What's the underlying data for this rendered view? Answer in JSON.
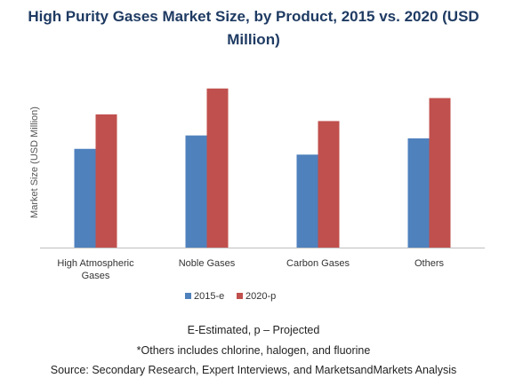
{
  "title": "High Purity Gases Market Size, by Product, 2015 vs. 2020 (USD Million)",
  "chart_data": {
    "type": "bar",
    "title": "High Purity Gases Market Size, by Product, 2015 vs. 2020 (USD Million)",
    "xlabel": "",
    "ylabel": "Market Size (USD Million)",
    "categories": [
      "High Atmospheric Gases",
      "Noble Gases",
      "Carbon Gases",
      "Others"
    ],
    "category_lines": [
      [
        "High Atmospheric",
        "Gases"
      ],
      [
        "Noble Gases"
      ],
      [
        "Carbon Gases"
      ],
      [
        "Others"
      ]
    ],
    "series": [
      {
        "name": "2015-e",
        "color": "#4f81bd",
        "values": [
          103,
          117,
          97,
          114
        ]
      },
      {
        "name": "2020-p",
        "color": "#c0504d",
        "values": [
          139,
          166,
          132,
          156
        ]
      }
    ],
    "ylim": [
      0,
      175
    ],
    "grid": false,
    "legend": "bottom"
  },
  "footnotes": [
    "E-Estimated, p – Projected",
    "*Others includes chlorine, halogen, and fluorine",
    "Source: Secondary Research, Expert Interviews, and MarketsandMarkets Analysis"
  ]
}
